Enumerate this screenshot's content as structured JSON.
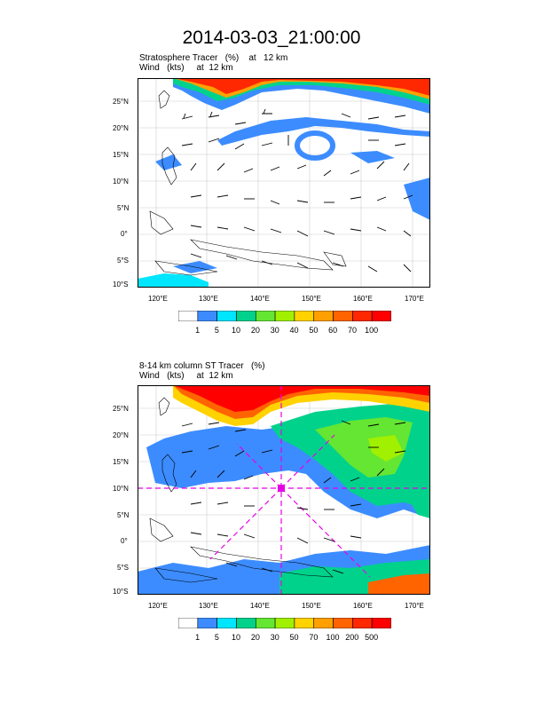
{
  "title": "2014-03-03_21:00:00",
  "panel1": {
    "title": "Stratosphere Tracer   (%)    at   12 km",
    "subtitle": "Wind   (kts)     at  12 km",
    "colorbar": {
      "labels": [
        "1",
        "5",
        "10",
        "20",
        "30",
        "40",
        "50",
        "60",
        "70",
        "100"
      ],
      "colors": [
        "#ffffff",
        "#3c8cff",
        "#00e6ff",
        "#00d28c",
        "#64e632",
        "#a0f000",
        "#ffd200",
        "#ffa000",
        "#ff6400",
        "#ff2800",
        "#ff0000"
      ]
    }
  },
  "panel2": {
    "title": "8-14 km column ST Tracer   (%)",
    "subtitle": "Wind   (kts)     at  12 km",
    "colorbar": {
      "labels": [
        "1",
        "5",
        "10",
        "20",
        "30",
        "50",
        "70",
        "100",
        "200",
        "500"
      ],
      "colors": [
        "#ffffff",
        "#3c8cff",
        "#00e6ff",
        "#00d28c",
        "#64e632",
        "#a0f000",
        "#ffd200",
        "#ffa000",
        "#ff6400",
        "#ff2800",
        "#ff0000"
      ]
    }
  },
  "axes": {
    "lat_labels": [
      "25°N",
      "20°N",
      "15°N",
      "10°N",
      "5°N",
      "0°",
      "5°S",
      "10°S"
    ],
    "lon_labels": [
      "120°E",
      "130°E",
      "140°E",
      "150°E",
      "160°E",
      "170°E"
    ]
  }
}
